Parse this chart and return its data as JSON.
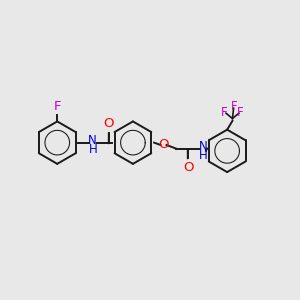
{
  "bg_color": "#e8e8e8",
  "bond_color": "#1a1a1a",
  "oxygen_color": "#ff0000",
  "nitrogen_color": "#0000cc",
  "fluorine_color": "#cc00cc",
  "line_width": 1.4,
  "font_size": 8.5,
  "fig_width": 3.0,
  "fig_height": 3.0,
  "xlim": [
    0,
    10
  ],
  "ylim": [
    0,
    10
  ]
}
